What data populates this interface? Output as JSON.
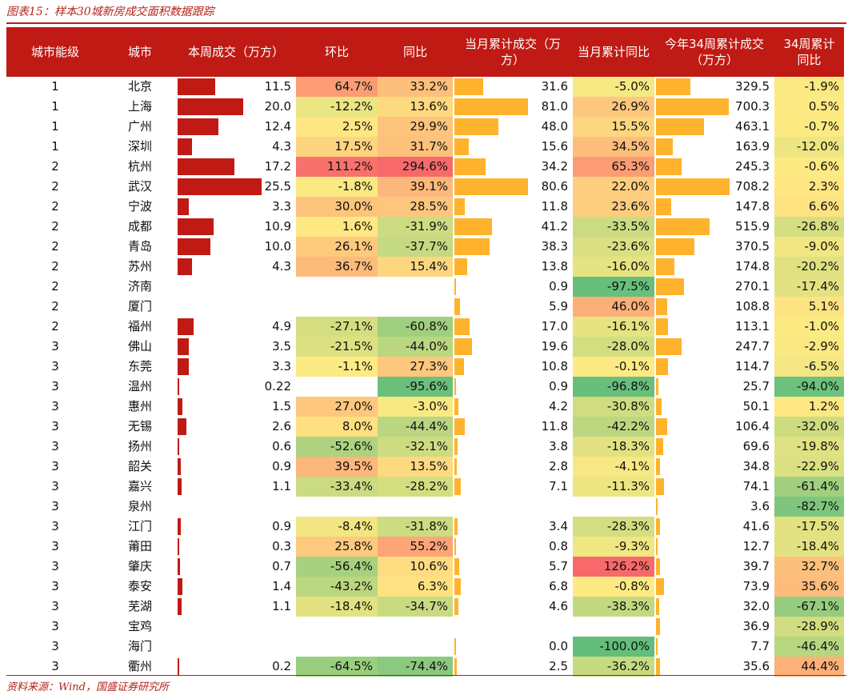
{
  "caption": "图表15：样本30城新房成交面积数据跟踪",
  "source": "资料来源：Wind，国盛证券研究所",
  "colors": {
    "header_bg": "#c01a14",
    "bar_red": "#c01a14",
    "bar_orange": "#ffb32c"
  },
  "chart_data": {
    "type": "table",
    "columns": [
      "城市能级",
      "城市",
      "本周成交（万方）",
      "环比",
      "同比",
      "当月累计成交（万方）",
      "当月累计同比",
      "今年34周累计成交（万方）",
      "34周累计同比"
    ],
    "rows": [
      [
        "1",
        "北京",
        "11.5",
        "64.7%",
        "33.2%",
        "31.6",
        "-5.0%",
        "329.5",
        "-1.9%"
      ],
      [
        "1",
        "上海",
        "20.0",
        "-12.2%",
        "13.6%",
        "81.0",
        "26.9%",
        "700.3",
        "0.5%"
      ],
      [
        "1",
        "广州",
        "12.4",
        "2.5%",
        "29.9%",
        "48.0",
        "15.5%",
        "463.1",
        "-0.7%"
      ],
      [
        "1",
        "深圳",
        "4.3",
        "17.5%",
        "31.7%",
        "15.6",
        "34.5%",
        "163.9",
        "-12.0%"
      ],
      [
        "2",
        "杭州",
        "17.2",
        "111.2%",
        "294.6%",
        "34.2",
        "65.3%",
        "245.3",
        "-0.6%"
      ],
      [
        "2",
        "武汉",
        "25.5",
        "-1.8%",
        "39.1%",
        "80.6",
        "22.0%",
        "708.2",
        "2.3%"
      ],
      [
        "2",
        "宁波",
        "3.3",
        "30.0%",
        "28.5%",
        "11.8",
        "23.6%",
        "147.8",
        "6.6%"
      ],
      [
        "2",
        "成都",
        "10.9",
        "1.6%",
        "-31.9%",
        "41.2",
        "-33.5%",
        "515.9",
        "-26.8%"
      ],
      [
        "2",
        "青岛",
        "10.0",
        "26.1%",
        "-37.7%",
        "38.3",
        "-23.6%",
        "370.5",
        "-9.0%"
      ],
      [
        "2",
        "苏州",
        "4.3",
        "36.7%",
        "15.4%",
        "13.8",
        "-16.0%",
        "174.8",
        "-20.2%"
      ],
      [
        "2",
        "济南",
        "",
        "",
        "",
        "0.9",
        "-97.5%",
        "270.1",
        "-17.4%"
      ],
      [
        "2",
        "厦门",
        "",
        "",
        "",
        "5.9",
        "46.0%",
        "108.8",
        "5.1%"
      ],
      [
        "2",
        "福州",
        "4.9",
        "-27.1%",
        "-60.8%",
        "17.0",
        "-16.1%",
        "113.1",
        "-1.0%"
      ],
      [
        "3",
        "佛山",
        "3.5",
        "-21.5%",
        "-44.0%",
        "19.6",
        "-28.0%",
        "247.7",
        "-2.9%"
      ],
      [
        "3",
        "东莞",
        "3.3",
        "-1.1%",
        "27.3%",
        "10.8",
        "-0.1%",
        "114.7",
        "-6.5%"
      ],
      [
        "3",
        "温州",
        "0.22",
        "",
        "-95.6%",
        "0.9",
        "-96.8%",
        "25.7",
        "-94.0%"
      ],
      [
        "3",
        "惠州",
        "1.5",
        "27.0%",
        "-3.0%",
        "4.2",
        "-30.8%",
        "50.1",
        "1.2%"
      ],
      [
        "3",
        "无锡",
        "2.6",
        "8.0%",
        "-44.4%",
        "11.8",
        "-42.2%",
        "106.4",
        "-32.0%"
      ],
      [
        "3",
        "扬州",
        "0.6",
        "-52.6%",
        "-32.1%",
        "3.8",
        "-18.3%",
        "69.6",
        "-19.8%"
      ],
      [
        "3",
        "韶关",
        "0.9",
        "39.5%",
        "13.5%",
        "2.8",
        "-4.1%",
        "34.8",
        "-22.9%"
      ],
      [
        "3",
        "嘉兴",
        "1.1",
        "-33.4%",
        "-28.2%",
        "7.1",
        "-11.3%",
        "74.1",
        "-61.4%"
      ],
      [
        "3",
        "泉州",
        "",
        "",
        "",
        "",
        "",
        "3.6",
        "-82.7%"
      ],
      [
        "3",
        "江门",
        "0.9",
        "-8.4%",
        "-31.8%",
        "3.4",
        "-28.3%",
        "41.6",
        "-17.5%"
      ],
      [
        "3",
        "莆田",
        "0.3",
        "25.8%",
        "55.2%",
        "0.8",
        "-9.3%",
        "12.7",
        "-18.4%"
      ],
      [
        "3",
        "肇庆",
        "0.7",
        "-56.4%",
        "10.6%",
        "5.7",
        "126.2%",
        "39.7",
        "32.7%"
      ],
      [
        "3",
        "泰安",
        "1.4",
        "-43.2%",
        "6.3%",
        "6.8",
        "-0.8%",
        "73.9",
        "35.6%"
      ],
      [
        "3",
        "芜湖",
        "1.1",
        "-18.4%",
        "-34.7%",
        "4.6",
        "-38.3%",
        "32.0",
        "-67.1%"
      ],
      [
        "3",
        "宝鸡",
        "",
        "",
        "",
        "",
        "",
        "36.9",
        "-28.9%"
      ],
      [
        "3",
        "海门",
        "",
        "",
        "",
        "0.0",
        "-100.0%",
        "7.7",
        "-46.4%"
      ],
      [
        "3",
        "衢州",
        "0.2",
        "-64.5%",
        "-74.4%",
        "2.5",
        "-36.2%",
        "35.6",
        "44.4%"
      ]
    ]
  }
}
